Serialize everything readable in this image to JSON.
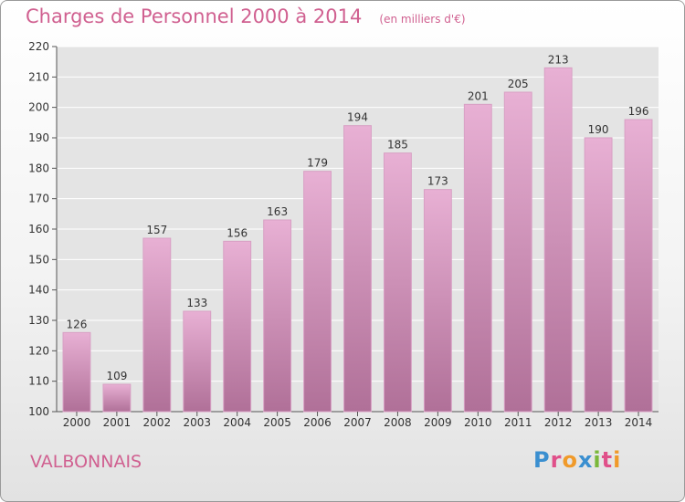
{
  "header": {
    "title": "Charges de Personnel 2000 à 2014",
    "unit_note": "(en milliers d'€)"
  },
  "footer": {
    "place": "VALBONNAIS",
    "logo": "Proxiti",
    "logo_colors": [
      "#3a8fd0",
      "#e0508a",
      "#f09a2a",
      "#3a8fd0",
      "#7ab83a",
      "#e0508a",
      "#f09a2a"
    ]
  },
  "colors": {
    "accent": "#d06090",
    "bar_top": "#e8b0d4",
    "bar_bottom": "#b07098",
    "grid": "#ffffff",
    "plot_bg": "#e4e4e4"
  },
  "chart_data": {
    "type": "bar",
    "categories": [
      "2000",
      "2001",
      "2002",
      "2003",
      "2004",
      "2005",
      "2006",
      "2007",
      "2008",
      "2009",
      "2010",
      "2011",
      "2012",
      "2013",
      "2014"
    ],
    "values": [
      126,
      109,
      157,
      133,
      156,
      163,
      179,
      194,
      185,
      173,
      201,
      205,
      213,
      190,
      196
    ],
    "ylim": [
      100,
      220
    ],
    "yticks": [
      100,
      110,
      120,
      130,
      140,
      150,
      160,
      170,
      180,
      190,
      200,
      210,
      220
    ],
    "grid": true,
    "data_labels": true
  }
}
